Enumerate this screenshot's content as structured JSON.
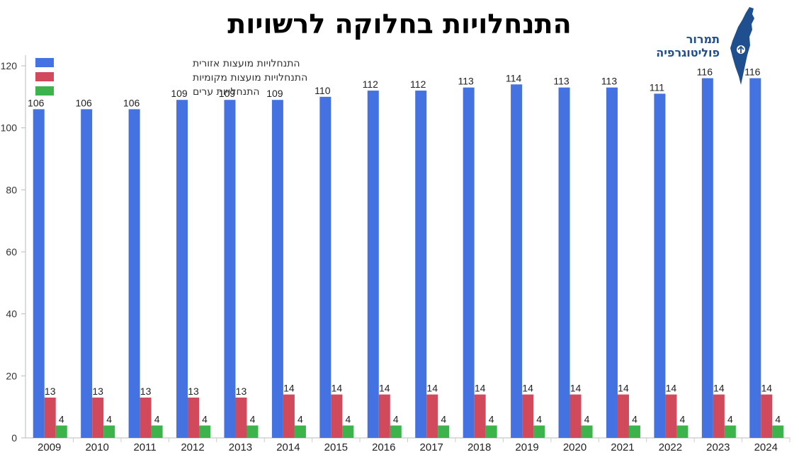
{
  "logo": {
    "line1": "תמרור",
    "line2": "פוליטוגרפיה",
    "accent": "#1f4f8f",
    "icon": "israel-map-icon"
  },
  "chart_data": {
    "type": "bar",
    "title": "התנחלויות בחלוקה לרשויות",
    "categories": [
      "2009",
      "2010",
      "2011",
      "2012",
      "2013",
      "2014",
      "2015",
      "2016",
      "2017",
      "2018",
      "2019",
      "2020",
      "2021",
      "2022",
      "2023",
      "2024"
    ],
    "series": [
      {
        "name": "התנחלויות מועצות אזורית",
        "color": "#4472e0",
        "values": [
          106,
          106,
          106,
          109,
          109,
          109,
          110,
          112,
          112,
          113,
          114,
          113,
          113,
          111,
          116,
          116
        ]
      },
      {
        "name": "התנחלויות מועצות מקומיות",
        "color": "#d04a5c",
        "values": [
          13,
          13,
          13,
          13,
          13,
          14,
          14,
          14,
          14,
          14,
          14,
          14,
          14,
          14,
          14,
          14
        ]
      },
      {
        "name": "התנחלויות ערים",
        "color": "#3cb44b",
        "values": [
          4,
          4,
          4,
          4,
          4,
          4,
          4,
          4,
          4,
          4,
          4,
          4,
          4,
          4,
          4,
          4
        ]
      }
    ],
    "ylim": [
      0,
      120
    ],
    "yticks": [
      0,
      20,
      40,
      60,
      80,
      100,
      120
    ],
    "grid": false,
    "data_labels": true,
    "legend_position": "top-left"
  }
}
